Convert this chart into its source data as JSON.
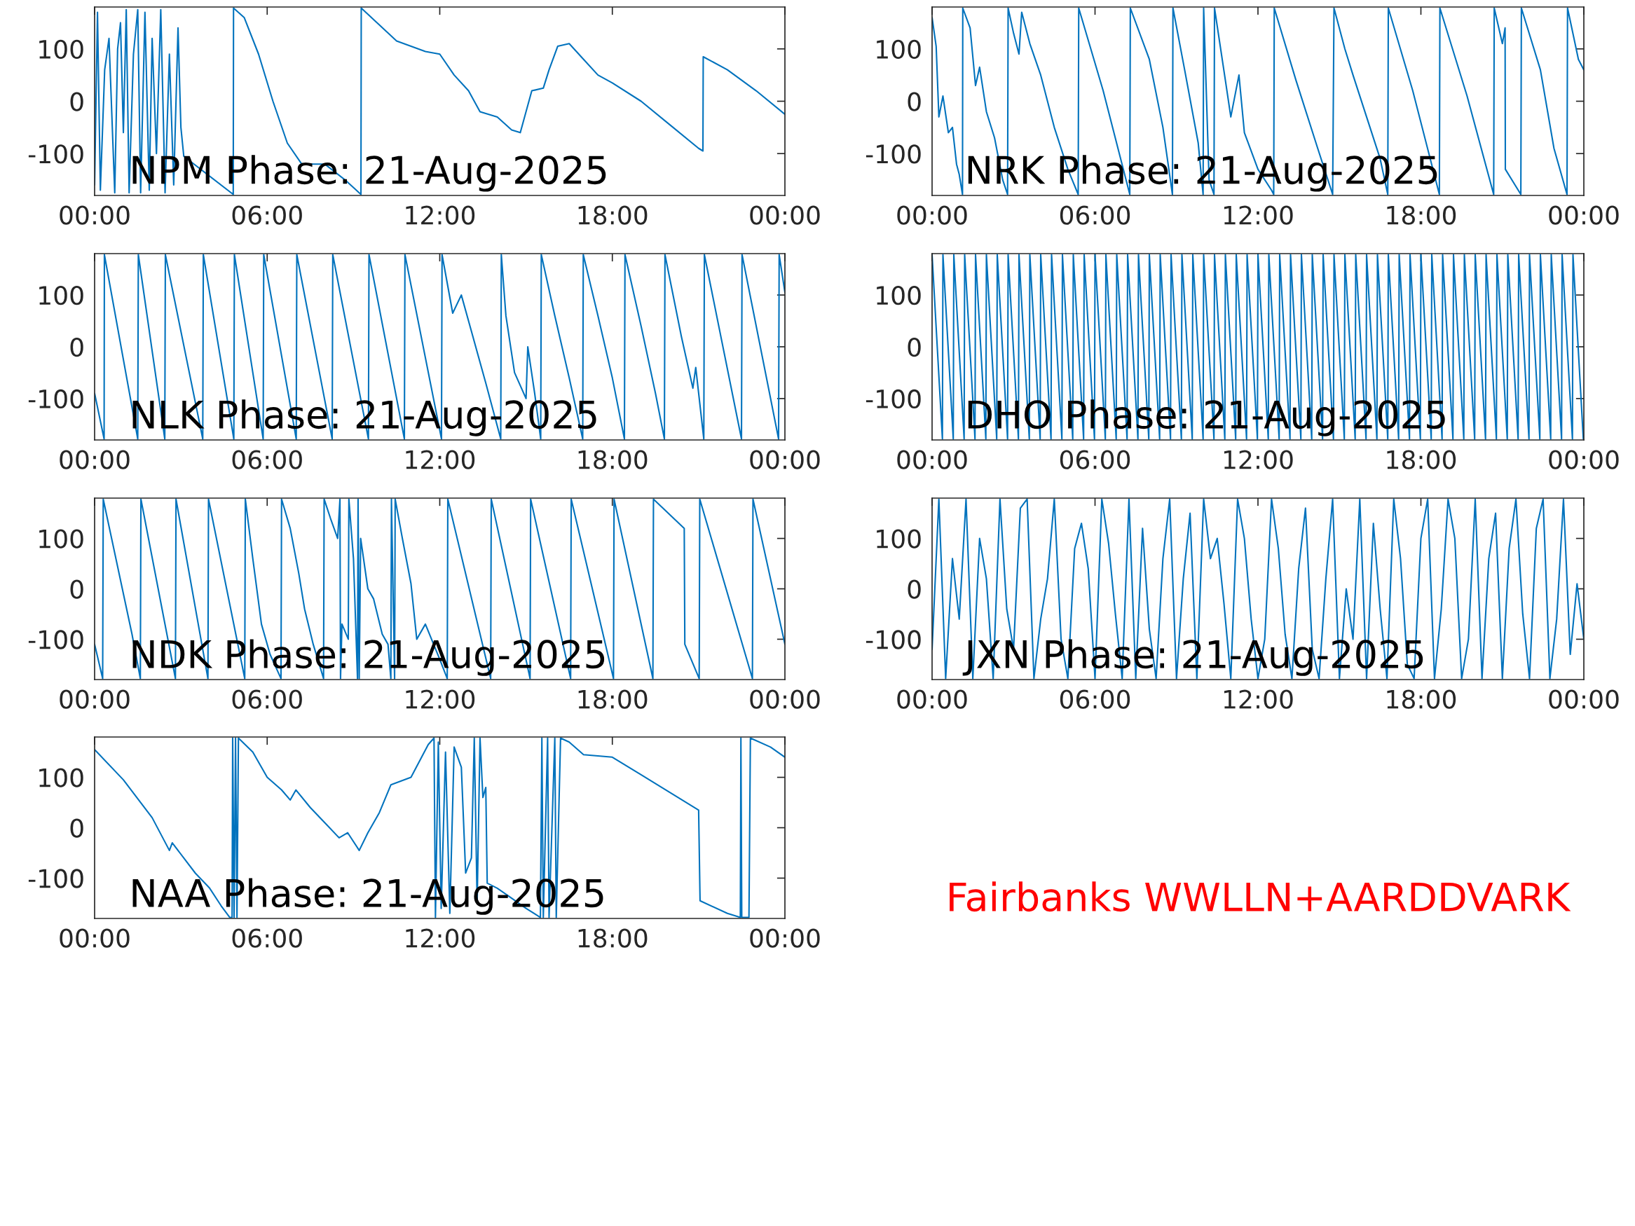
{
  "chart_data": [
    {
      "type": "line",
      "title": "NPM Phase: 21-Aug-2025",
      "xlim": [
        0,
        24
      ],
      "xticks": [
        {
          "value": 0,
          "label": "00:00"
        },
        {
          "value": 6,
          "label": "06:00"
        },
        {
          "value": 12,
          "label": "12:00"
        },
        {
          "value": 18,
          "label": "18:00"
        },
        {
          "value": 24,
          "label": "00:00"
        }
      ],
      "ylim": [
        -180,
        180
      ],
      "yticks": [
        -100,
        0,
        100
      ],
      "series": [
        {
          "color": "#0072bd",
          "x": [
            0,
            0.1,
            0.2,
            0.35,
            0.5,
            0.7,
            0.8,
            0.9,
            1.0,
            1.1,
            1.2,
            1.35,
            1.5,
            1.6,
            1.75,
            1.9,
            2.0,
            2.15,
            2.3,
            2.45,
            2.6,
            2.75,
            2.9,
            3.0,
            3.1,
            4.82,
            4.83,
            5.2,
            5.7,
            6.2,
            6.7,
            7.2,
            8.0,
            8.7,
            9.26,
            9.27,
            10.5,
            11.5,
            12.0,
            12.5,
            13.0,
            13.4,
            14.0,
            14.5,
            14.8,
            15.2,
            15.6,
            15.8,
            16.1,
            16.5,
            17.0,
            17.5,
            18.0,
            19.0,
            20.0,
            21.0,
            21.15,
            21.16,
            22.0,
            23.0,
            24.0
          ],
          "values": [
            -160,
            170,
            -170,
            60,
            120,
            -175,
            100,
            150,
            -60,
            175,
            -175,
            90,
            175,
            -175,
            170,
            -170,
            120,
            -100,
            175,
            -175,
            90,
            -160,
            140,
            -50,
            -105,
            -178,
            178,
            160,
            90,
            0,
            -80,
            -120,
            -120,
            -150,
            -178,
            178,
            115,
            95,
            90,
            50,
            20,
            -20,
            -30,
            -55,
            -60,
            20,
            25,
            60,
            105,
            110,
            80,
            50,
            35,
            0,
            -45,
            -90,
            -95,
            85,
            60,
            20,
            -25
          ]
        }
      ]
    },
    {
      "type": "line",
      "title": "NRK Phase: 21-Aug-2025",
      "xlim": [
        0,
        24
      ],
      "xticks": [
        {
          "value": 0,
          "label": "00:00"
        },
        {
          "value": 6,
          "label": "06:00"
        },
        {
          "value": 12,
          "label": "12:00"
        },
        {
          "value": 18,
          "label": "18:00"
        },
        {
          "value": 24,
          "label": "00:00"
        }
      ],
      "ylim": [
        -180,
        180
      ],
      "yticks": [
        -100,
        0,
        100
      ],
      "series": [
        {
          "color": "#0072bd",
          "x": [
            0,
            0.15,
            0.25,
            0.4,
            0.6,
            0.75,
            0.9,
            1.0,
            1.12,
            1.13,
            1.4,
            1.6,
            1.75,
            2.0,
            2.3,
            2.6,
            2.78,
            2.8,
            3.0,
            3.2,
            3.3,
            3.6,
            4.0,
            4.5,
            5.0,
            5.38,
            5.4,
            6.3,
            7.28,
            7.3,
            8.0,
            8.5,
            8.85,
            8.87,
            9.3,
            9.8,
            9.98,
            10.0,
            10.2,
            10.38,
            10.4,
            10.8,
            11.0,
            11.3,
            11.5,
            12.0,
            12.5,
            12.58,
            12.6,
            13.4,
            14.2,
            14.75,
            14.8,
            15.2,
            15.5,
            16.0,
            16.5,
            16.78,
            16.8,
            17.7,
            18.68,
            18.7,
            19.7,
            20.68,
            20.7,
            21.0,
            21.1,
            21.11,
            21.68,
            21.7,
            22.4,
            22.9,
            23.38,
            23.4,
            23.8,
            24.0
          ],
          "values": [
            160,
            105,
            -30,
            10,
            -60,
            -50,
            -120,
            -140,
            -178,
            178,
            140,
            30,
            65,
            -20,
            -70,
            -150,
            -178,
            178,
            130,
            90,
            170,
            110,
            50,
            -50,
            -130,
            -178,
            178,
            20,
            -178,
            178,
            80,
            -50,
            -178,
            178,
            60,
            -80,
            -178,
            178,
            -150,
            -178,
            178,
            40,
            -30,
            50,
            -60,
            -130,
            -170,
            -178,
            178,
            40,
            -90,
            -178,
            178,
            100,
            50,
            -30,
            -110,
            -178,
            178,
            20,
            -178,
            178,
            10,
            -178,
            178,
            110,
            140,
            -130,
            -178,
            178,
            60,
            -90,
            -178,
            178,
            80,
            60
          ]
        }
      ]
    },
    {
      "type": "line",
      "title": "NLK Phase: 21-Aug-2025",
      "xlim": [
        0,
        24
      ],
      "xticks": [
        {
          "value": 0,
          "label": "00:00"
        },
        {
          "value": 6,
          "label": "06:00"
        },
        {
          "value": 12,
          "label": "12:00"
        },
        {
          "value": 18,
          "label": "18:00"
        },
        {
          "value": 24,
          "label": "00:00"
        }
      ],
      "ylim": [
        -180,
        180
      ],
      "yticks": [
        -100,
        0,
        100
      ],
      "series": [
        {
          "color": "#0072bd",
          "x": [
            0,
            0.33,
            0.34,
            1.5,
            1.52,
            2.44,
            2.46,
            3.76,
            3.78,
            4.84,
            4.86,
            5.86,
            5.88,
            7.01,
            7.03,
            8.26,
            8.28,
            9.52,
            9.54,
            10.77,
            10.79,
            12.06,
            12.08,
            12.45,
            12.75,
            13.1,
            13.6,
            14.12,
            14.14,
            14.3,
            14.6,
            15.0,
            15.06,
            15.3,
            15.51,
            15.53,
            16.0,
            16.5,
            16.97,
            16.99,
            17.5,
            18.0,
            18.42,
            18.44,
            19.0,
            19.5,
            19.81,
            19.83,
            20.4,
            20.8,
            20.9,
            21.18,
            21.2,
            22.49,
            22.51,
            23.78,
            23.8,
            24.0
          ],
          "values": [
            -90,
            -178,
            178,
            -178,
            178,
            -178,
            178,
            -178,
            178,
            -178,
            178,
            -178,
            178,
            -178,
            178,
            -178,
            178,
            -178,
            178,
            -178,
            178,
            -178,
            178,
            65,
            100,
            30,
            -70,
            -178,
            178,
            60,
            -50,
            -100,
            0,
            -90,
            -178,
            178,
            60,
            -60,
            -178,
            178,
            60,
            -60,
            -178,
            178,
            40,
            -90,
            -178,
            178,
            20,
            -80,
            -40,
            -178,
            178,
            -178,
            178,
            -178,
            178,
            105
          ]
        }
      ]
    },
    {
      "type": "line",
      "title": "DHO Phase: 21-Aug-2025",
      "xlim": [
        0,
        24
      ],
      "xticks": [
        {
          "value": 0,
          "label": "00:00"
        },
        {
          "value": 6,
          "label": "06:00"
        },
        {
          "value": 12,
          "label": "12:00"
        },
        {
          "value": 18,
          "label": "18:00"
        },
        {
          "value": 24,
          "label": "00:00"
        }
      ],
      "ylim": [
        -180,
        180
      ],
      "yticks": [
        -100,
        0,
        100
      ],
      "series": [
        {
          "color": "#0072bd",
          "x": [
            0,
            0.38,
            0.4,
            0.78,
            0.8,
            1.18,
            1.2,
            1.58,
            1.6,
            1.98,
            2,
            2.38,
            2.4,
            2.78,
            2.8,
            3.18,
            3.2,
            3.58,
            3.6,
            3.98,
            4,
            4.38,
            4.4,
            4.78,
            4.8,
            5.18,
            5.2,
            5.58,
            5.6,
            5.98,
            6,
            6.38,
            6.4,
            6.78,
            6.8,
            7.18,
            7.2,
            7.58,
            7.6,
            7.98,
            8,
            8.38,
            8.4,
            8.78,
            8.8,
            9.18,
            9.2,
            9.58,
            9.6,
            9.98,
            10,
            10.38,
            10.4,
            10.78,
            10.8,
            11.18,
            11.2,
            11.58,
            11.6,
            11.98,
            12,
            12.38,
            12.4,
            12.78,
            12.8,
            13.18,
            13.2,
            13.58,
            13.6,
            13.98,
            14,
            14.38,
            14.4,
            14.78,
            14.8,
            15.18,
            15.2,
            15.58,
            15.6,
            15.98,
            16,
            16.38,
            16.4,
            16.78,
            16.8,
            17.18,
            17.2,
            17.58,
            17.6,
            17.98,
            18,
            18.38,
            18.4,
            18.78,
            18.8,
            19.18,
            19.2,
            19.58,
            19.6,
            19.98,
            20,
            20.38,
            20.4,
            20.78,
            20.8,
            21.18,
            21.2,
            21.58,
            21.6,
            21.98,
            22,
            22.38,
            22.4,
            22.78,
            22.8,
            23.18,
            23.2,
            23.58,
            23.6,
            23.98
          ],
          "values": [
            178,
            -178,
            178,
            -178,
            178,
            -178,
            178,
            -178,
            178,
            -178,
            178,
            -178,
            178,
            -178,
            178,
            -178,
            178,
            -178,
            178,
            -178,
            178,
            -178,
            178,
            -178,
            178,
            -178,
            178,
            -178,
            178,
            -178,
            178,
            -178,
            178,
            -178,
            178,
            -178,
            178,
            -178,
            178,
            -178,
            178,
            -178,
            178,
            -178,
            178,
            -178,
            178,
            -178,
            178,
            -178,
            178,
            -178,
            178,
            -178,
            178,
            -178,
            178,
            -178,
            178,
            -178,
            178,
            -178,
            178,
            -178,
            178,
            -178,
            178,
            -178,
            178,
            -178,
            178,
            -178,
            178,
            -178,
            178,
            -178,
            178,
            -178,
            178,
            -178,
            178,
            -178,
            178,
            -178,
            178,
            -178,
            178,
            -178,
            178,
            -178,
            178,
            -178,
            178,
            -178,
            178,
            -178,
            178,
            -178,
            178,
            -178,
            178,
            -178,
            178,
            -178,
            178,
            -178,
            178,
            -178,
            178,
            -178,
            178,
            -178,
            178,
            -178,
            178,
            -178,
            178,
            -178,
            178,
            -178
          ]
        }
      ]
    },
    {
      "type": "line",
      "title": "NDK Phase: 21-Aug-2025",
      "xlim": [
        0,
        24
      ],
      "xticks": [
        {
          "value": 0,
          "label": "00:00"
        },
        {
          "value": 6,
          "label": "06:00"
        },
        {
          "value": 12,
          "label": "12:00"
        },
        {
          "value": 18,
          "label": "18:00"
        },
        {
          "value": 24,
          "label": "00:00"
        }
      ],
      "ylim": [
        -180,
        180
      ],
      "yticks": [
        -100,
        0,
        100
      ],
      "series": [
        {
          "color": "#0072bd",
          "x": [
            0,
            0.28,
            0.3,
            1.3,
            1.59,
            1.61,
            2.81,
            2.83,
            3.94,
            3.96,
            5.22,
            5.24,
            5.5,
            5.8,
            6.1,
            6.48,
            6.5,
            6.8,
            7.1,
            7.3,
            7.6,
            7.96,
            7.98,
            8.2,
            8.45,
            8.53,
            8.55,
            8.6,
            8.82,
            8.84,
            9.0,
            9.14,
            9.16,
            9.2,
            9.25,
            9.5,
            9.7,
            10.0,
            10.2,
            10.3,
            10.32,
            10.43,
            10.45,
            10.7,
            11.0,
            11.2,
            11.5,
            12.0,
            12.26,
            12.28,
            13.77,
            13.79,
            15.14,
            15.16,
            16.55,
            16.57,
            18.04,
            18.06,
            19.41,
            19.43,
            20.5,
            20.52,
            21.02,
            21.04,
            22.87,
            22.89,
            24.0
          ],
          "values": [
            -110,
            -178,
            178,
            -90,
            -178,
            178,
            -178,
            178,
            -178,
            178,
            -178,
            178,
            60,
            -70,
            -130,
            -178,
            178,
            120,
            30,
            -40,
            -110,
            -178,
            178,
            140,
            100,
            178,
            -178,
            -70,
            -100,
            178,
            60,
            -178,
            178,
            -178,
            100,
            0,
            -20,
            -90,
            -110,
            -178,
            178,
            -178,
            178,
            100,
            10,
            -100,
            -70,
            -140,
            -178,
            178,
            -178,
            178,
            -178,
            178,
            -178,
            178,
            -178,
            178,
            -178,
            178,
            120,
            -110,
            -178,
            178,
            -178,
            178,
            -110
          ]
        }
      ]
    },
    {
      "type": "line",
      "title": "JXN Phase: 21-Aug-2025",
      "xlim": [
        0,
        24
      ],
      "xticks": [
        {
          "value": 0,
          "label": "00:00"
        },
        {
          "value": 6,
          "label": "06:00"
        },
        {
          "value": 12,
          "label": "12:00"
        },
        {
          "value": 18,
          "label": "18:00"
        },
        {
          "value": 24,
          "label": "00:00"
        }
      ],
      "ylim": [
        -180,
        180
      ],
      "yticks": [
        -100,
        0,
        100
      ],
      "series": [
        {
          "color": "#0072bd",
          "x": [
            0,
            0.25,
            0.5,
            0.75,
            1,
            1.25,
            1.5,
            1.75,
            2,
            2.25,
            2.5,
            2.75,
            3,
            3.25,
            3.5,
            3.75,
            4,
            4.25,
            4.5,
            4.75,
            5,
            5.25,
            5.5,
            5.75,
            6,
            6.25,
            6.5,
            6.75,
            7,
            7.25,
            7.5,
            7.75,
            8,
            8.25,
            8.5,
            8.75,
            9,
            9.25,
            9.5,
            9.75,
            10,
            10.25,
            10.5,
            10.75,
            11,
            11.25,
            11.5,
            11.75,
            12,
            12.25,
            12.5,
            12.75,
            13,
            13.25,
            13.5,
            13.75,
            14,
            14.25,
            14.5,
            14.75,
            15,
            15.25,
            15.5,
            15.75,
            16,
            16.25,
            16.5,
            16.75,
            17,
            17.25,
            17.5,
            17.75,
            18,
            18.25,
            18.5,
            18.75,
            19,
            19.25,
            19.5,
            19.75,
            20,
            20.25,
            20.5,
            20.75,
            21,
            21.25,
            21.5,
            21.75,
            22,
            22.25,
            22.5,
            22.75,
            23,
            23.25,
            23.5,
            23.75,
            24
          ],
          "values": [
            -120,
            178,
            -178,
            60,
            -60,
            178,
            -178,
            100,
            20,
            -178,
            178,
            -40,
            -120,
            160,
            178,
            -178,
            -60,
            20,
            178,
            -100,
            -178,
            80,
            130,
            40,
            -178,
            178,
            90,
            -50,
            -178,
            178,
            -178,
            120,
            -80,
            -178,
            60,
            178,
            -178,
            20,
            150,
            -178,
            178,
            60,
            100,
            -30,
            -178,
            178,
            100,
            -60,
            -178,
            -100,
            178,
            80,
            -90,
            -178,
            40,
            160,
            -120,
            -178,
            20,
            178,
            -178,
            0,
            -100,
            178,
            -178,
            130,
            -40,
            -178,
            178,
            60,
            -150,
            -178,
            100,
            178,
            -178,
            -40,
            178,
            100,
            -178,
            -100,
            178,
            -178,
            60,
            150,
            -178,
            80,
            178,
            -50,
            -178,
            120,
            178,
            -178,
            -60,
            178,
            -130,
            10,
            -100
          ]
        }
      ]
    },
    {
      "type": "line",
      "title": "NAA Phase: 21-Aug-2025",
      "xlim": [
        0,
        24
      ],
      "xticks": [
        {
          "value": 0,
          "label": "00:00"
        },
        {
          "value": 6,
          "label": "06:00"
        },
        {
          "value": 12,
          "label": "12:00"
        },
        {
          "value": 18,
          "label": "18:00"
        },
        {
          "value": 24,
          "label": "00:00"
        }
      ],
      "ylim": [
        -180,
        180
      ],
      "yticks": [
        -100,
        0,
        100
      ],
      "series": [
        {
          "color": "#0072bd",
          "x": [
            0,
            1.0,
            2.0,
            2.6,
            2.7,
            3.5,
            4.0,
            4.4,
            4.7,
            4.78,
            4.8,
            4.85,
            4.9,
            4.95,
            5.0,
            5.5,
            6.0,
            6.5,
            6.8,
            7.0,
            7.5,
            8.0,
            8.5,
            8.8,
            9.2,
            9.5,
            9.9,
            10.3,
            11.0,
            11.6,
            11.8,
            11.85,
            11.95,
            12.05,
            12.2,
            12.35,
            12.5,
            12.75,
            12.9,
            13.1,
            13.2,
            13.3,
            13.4,
            13.5,
            13.6,
            13.65,
            14.0,
            14.5,
            15.0,
            15.5,
            15.55,
            15.6,
            15.75,
            15.8,
            16.0,
            16.05,
            16.2,
            16.5,
            17.0,
            18.0,
            19.0,
            20.0,
            21.0,
            21.05,
            22.0,
            22.45,
            22.47,
            22.5,
            22.75,
            22.8,
            23.5,
            24.0
          ],
          "values": [
            155,
            95,
            20,
            -45,
            -30,
            -90,
            -120,
            -155,
            -178,
            -178,
            178,
            -178,
            178,
            -178,
            178,
            150,
            100,
            75,
            55,
            75,
            40,
            10,
            -20,
            -10,
            -45,
            -10,
            30,
            85,
            100,
            165,
            178,
            -178,
            170,
            -160,
            150,
            -170,
            160,
            120,
            -90,
            -60,
            178,
            -150,
            178,
            60,
            80,
            -110,
            -120,
            -140,
            -160,
            -178,
            178,
            -178,
            178,
            -178,
            178,
            -178,
            178,
            170,
            145,
            140,
            105,
            70,
            35,
            -145,
            -170,
            -178,
            178,
            -178,
            -178,
            178,
            160,
            140
          ]
        }
      ]
    },
    {
      "type": "other",
      "annotations": [
        "Fairbanks WWLLN+AARDDVARK"
      ]
    }
  ]
}
